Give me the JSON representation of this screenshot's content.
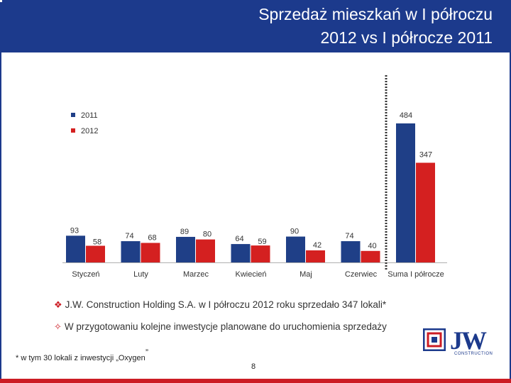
{
  "header": {
    "title_line1": "Sprzedaż mieszkań w I półroczu",
    "title_line2": "2012 vs I półrocze 2011"
  },
  "colors": {
    "header_bg": "#1c3a8c",
    "series_2011": "#1f3f87",
    "series_2012": "#d42020",
    "accent_red": "#cc1c24"
  },
  "chart_data": {
    "type": "bar",
    "categories": [
      "Styczeń",
      "Luty",
      "Marzec",
      "Kwiecień",
      "Maj",
      "Czerwiec",
      "Suma I półrocze"
    ],
    "series": [
      {
        "name": "2011",
        "values": [
          93,
          74,
          89,
          64,
          90,
          74,
          484
        ]
      },
      {
        "name": "2012",
        "values": [
          58,
          68,
          80,
          59,
          42,
          40,
          347
        ]
      }
    ],
    "title": "",
    "xlabel": "",
    "ylabel": "",
    "legend_position": "top-left",
    "grid": false
  },
  "bullets": [
    {
      "icon": "filled-diamond-icon",
      "text": "J.W. Construction Holding S.A. w I półroczu 2012 roku sprzedało 347 lokali*"
    },
    {
      "icon": "outline-diamond-icon",
      "text": "W przygotowaniu kolejne inwestycje planowane do uruchomienia sprzedaży"
    }
  ],
  "footnote": "* w tym 30 lokali z inwestycji „Oxygen",
  "footnote_quote": "”",
  "page_number": "8",
  "logo": {
    "text": "JW",
    "subtitle": "CONSTRUCTION"
  }
}
